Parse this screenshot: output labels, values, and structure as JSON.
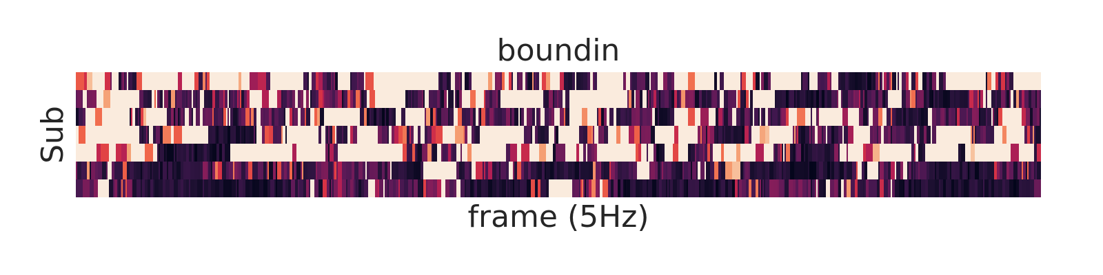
{
  "chart_data": {
    "type": "heatmap",
    "title": "boundin",
    "xlabel": "frame (5Hz)",
    "ylabel": "Sub",
    "rows": 7,
    "colormap": "rocket",
    "colorbar": false,
    "xticks_visible": false,
    "yticks_visible": false,
    "value_range": [
      0,
      1
    ],
    "bright_segments": [
      [
        [
          0.0,
          0.03
        ],
        [
          0.06,
          0.12
        ],
        [
          0.14,
          0.19
        ],
        [
          0.2,
          0.23
        ],
        [
          0.27,
          0.28
        ],
        [
          0.3,
          0.37
        ],
        [
          0.41,
          0.43
        ],
        [
          0.48,
          0.5
        ],
        [
          0.54,
          0.56
        ],
        [
          0.62,
          0.66
        ],
        [
          0.67,
          0.68
        ],
        [
          0.72,
          0.75
        ],
        [
          0.9,
          0.94
        ],
        [
          0.97,
          1.0
        ]
      ],
      [
        [
          0.02,
          0.06
        ],
        [
          0.18,
          0.2
        ],
        [
          0.3,
          0.34
        ],
        [
          0.4,
          0.42
        ],
        [
          0.44,
          0.48
        ],
        [
          0.51,
          0.56
        ],
        [
          0.7,
          0.72
        ],
        [
          0.84,
          0.85
        ]
      ],
      [
        [
          0.01,
          0.05
        ],
        [
          0.07,
          0.09
        ],
        [
          0.26,
          0.29
        ],
        [
          0.34,
          0.36
        ],
        [
          0.51,
          0.53
        ],
        [
          0.62,
          0.66
        ],
        [
          0.74,
          0.76
        ],
        [
          0.77,
          0.81
        ],
        [
          0.96,
          0.97
        ]
      ],
      [
        [
          0.0,
          0.06
        ],
        [
          0.09,
          0.13
        ],
        [
          0.22,
          0.25
        ],
        [
          0.29,
          0.31
        ],
        [
          0.37,
          0.4
        ],
        [
          0.42,
          0.46
        ],
        [
          0.5,
          0.52
        ],
        [
          0.55,
          0.58
        ],
        [
          0.6,
          0.64
        ],
        [
          0.7,
          0.74
        ],
        [
          0.8,
          0.82
        ],
        [
          0.89,
          0.92
        ],
        [
          0.95,
          0.98
        ]
      ],
      [
        [
          0.0,
          0.08
        ],
        [
          0.16,
          0.25
        ],
        [
          0.27,
          0.34
        ],
        [
          0.4,
          0.44
        ],
        [
          0.45,
          0.49
        ],
        [
          0.54,
          0.59
        ],
        [
          0.61,
          0.63
        ],
        [
          0.66,
          0.72
        ],
        [
          0.8,
          0.86
        ],
        [
          0.88,
          0.91
        ],
        [
          0.92,
          0.99
        ]
      ],
      [
        [
          0.36,
          0.39
        ],
        [
          0.41,
          0.42
        ],
        [
          0.58,
          0.59
        ],
        [
          0.67,
          0.68
        ],
        [
          0.82,
          0.83
        ]
      ],
      [
        [
          0.02,
          0.03
        ],
        [
          0.3,
          0.31
        ],
        [
          0.49,
          0.51
        ]
      ]
    ],
    "dark_segments": [
      [
        [
          0.79,
          0.82
        ]
      ],
      [
        [
          0.72,
          0.78
        ],
        [
          0.88,
          0.92
        ]
      ],
      [
        [
          0.3,
          0.33
        ],
        [
          0.6,
          0.63
        ],
        [
          0.85,
          0.88
        ]
      ],
      [
        [
          0.14,
          0.18
        ],
        [
          0.66,
          0.69
        ]
      ],
      [
        [
          0.08,
          0.16
        ],
        [
          0.6,
          0.62
        ],
        [
          0.75,
          0.78
        ]
      ],
      [
        [
          0.06,
          0.12
        ],
        [
          0.33,
          0.36
        ],
        [
          0.47,
          0.53
        ],
        [
          0.7,
          0.8
        ],
        [
          0.88,
          0.95
        ]
      ],
      [
        [
          0.06,
          0.22
        ],
        [
          0.4,
          0.47
        ],
        [
          0.56,
          0.68
        ],
        [
          0.85,
          0.99
        ]
      ]
    ],
    "row_mean_activity": [
      0.55,
      0.32,
      0.42,
      0.48,
      0.62,
      0.22,
      0.18
    ],
    "columns_per_row": 700,
    "seed": 7
  }
}
